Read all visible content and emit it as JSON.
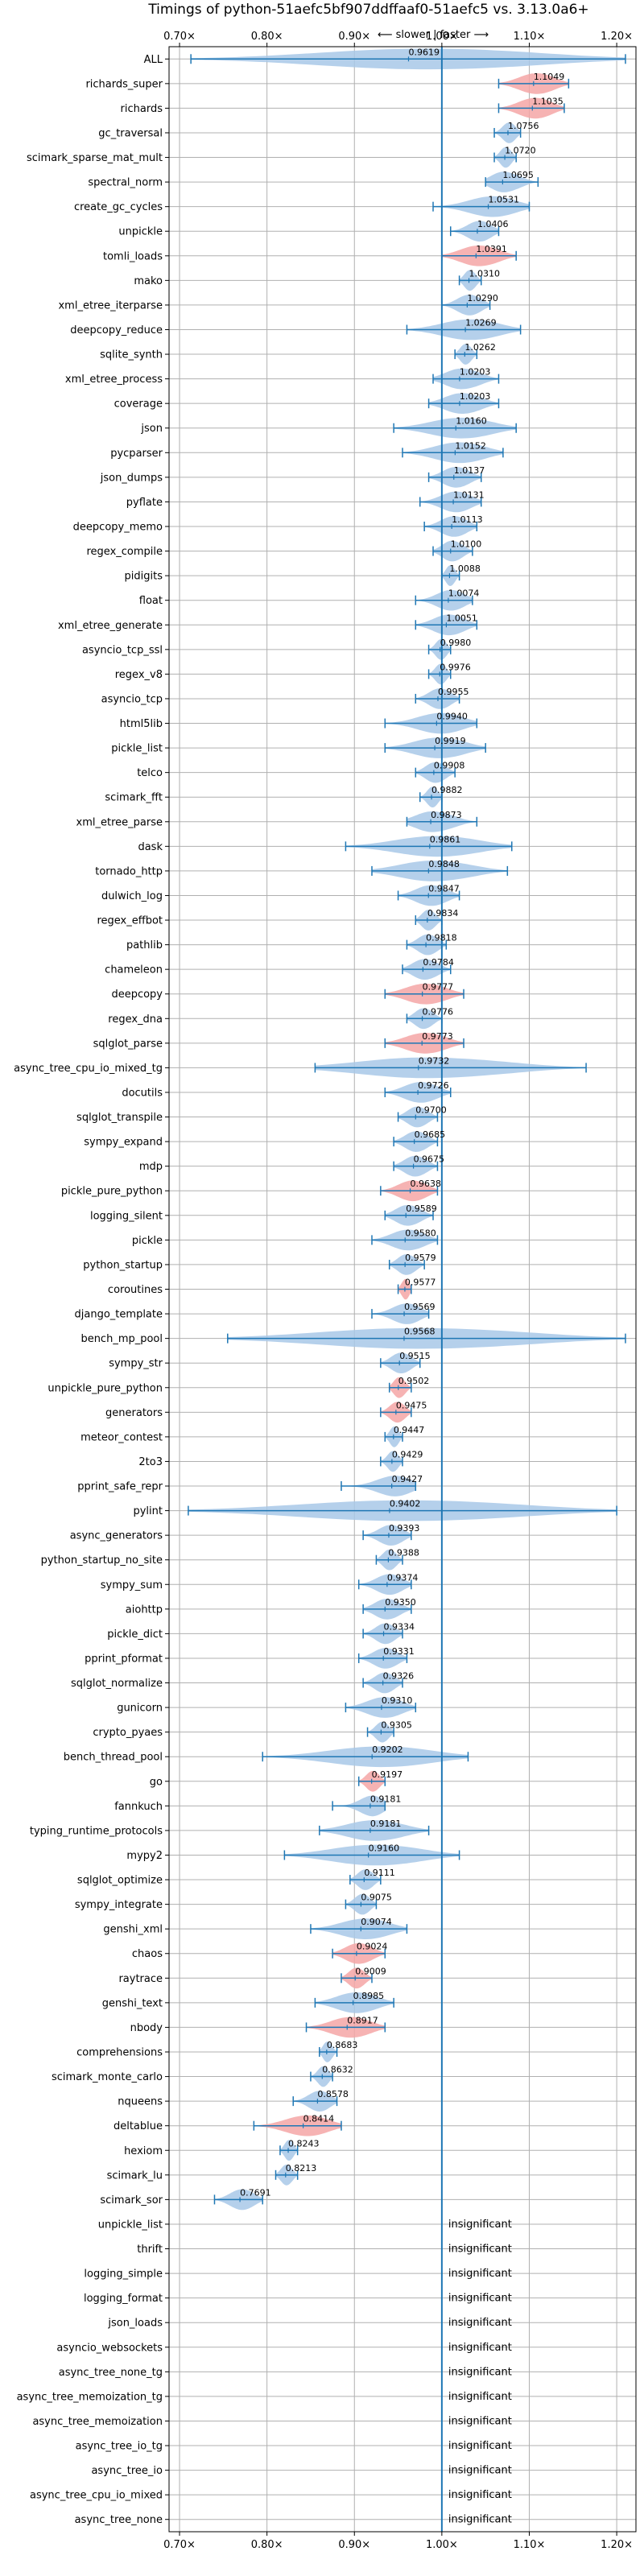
{
  "chart_data": {
    "type": "violin",
    "title": "Timings of python-51aefc5bf907ddffaaf0-51aefc5 vs. 3.13.0a6+",
    "direction_label": "⟵ slower | faster ⟶",
    "x_ticks": [
      "0.70×",
      "0.80×",
      "0.90×",
      "1.00×",
      "1.10×",
      "1.20×"
    ],
    "x_tick_values": [
      0.7,
      0.8,
      0.9,
      1.0,
      1.1,
      1.2
    ],
    "xlim": [
      0.688,
      1.222
    ],
    "reference_line": 1.0,
    "grid": true,
    "colors": {
      "faster": "#a8c8e8",
      "slower": "#f4a6a6",
      "marker": "#1f77b4",
      "grid": "#b0b0b0"
    },
    "insignificant_label": "insignificant",
    "benchmarks": [
      {
        "name": "ALL",
        "value": 0.9619,
        "label": "0.9619",
        "min": 0.713,
        "max": 1.21,
        "spread": 0.08,
        "slower": false
      },
      {
        "name": "richards_super",
        "value": 1.1049,
        "label": "1.1049",
        "min": 1.065,
        "max": 1.145,
        "spread": 0.04,
        "slower": true
      },
      {
        "name": "richards",
        "value": 1.1035,
        "label": "1.1035",
        "min": 1.065,
        "max": 1.14,
        "spread": 0.04,
        "slower": true
      },
      {
        "name": "gc_traversal",
        "value": 1.0756,
        "label": "1.0756",
        "min": 1.06,
        "max": 1.09,
        "spread": 0.02,
        "slower": false
      },
      {
        "name": "scimark_sparse_mat_mult",
        "value": 1.072,
        "label": "1.0720",
        "min": 1.06,
        "max": 1.085,
        "spread": 0.015,
        "slower": false
      },
      {
        "name": "spectral_norm",
        "value": 1.0695,
        "label": "1.0695",
        "min": 1.05,
        "max": 1.11,
        "spread": 0.05,
        "slower": false
      },
      {
        "name": "create_gc_cycles",
        "value": 1.0531,
        "label": "1.0531",
        "min": 0.99,
        "max": 1.1,
        "spread": 0.05,
        "slower": false
      },
      {
        "name": "unpickle",
        "value": 1.0406,
        "label": "1.0406",
        "min": 1.01,
        "max": 1.065,
        "spread": 0.03,
        "slower": false
      },
      {
        "name": "tomli_loads",
        "value": 1.0391,
        "label": "1.0391",
        "min": 1.0,
        "max": 1.085,
        "spread": 0.04,
        "slower": true
      },
      {
        "name": "mako",
        "value": 1.031,
        "label": "1.0310",
        "min": 1.02,
        "max": 1.045,
        "spread": 0.015,
        "slower": false
      },
      {
        "name": "xml_etree_iterparse",
        "value": 1.029,
        "label": "1.0290",
        "min": 1.0,
        "max": 1.055,
        "spread": 0.03,
        "slower": false
      },
      {
        "name": "deepcopy_reduce",
        "value": 1.0269,
        "label": "1.0269",
        "min": 0.96,
        "max": 1.09,
        "spread": 0.05,
        "slower": false
      },
      {
        "name": "sqlite_synth",
        "value": 1.0262,
        "label": "1.0262",
        "min": 1.015,
        "max": 1.04,
        "spread": 0.015,
        "slower": false
      },
      {
        "name": "xml_etree_process",
        "value": 1.0203,
        "label": "1.0203",
        "min": 0.99,
        "max": 1.065,
        "spread": 0.04,
        "slower": false
      },
      {
        "name": "coverage",
        "value": 1.0203,
        "label": "1.0203",
        "min": 0.985,
        "max": 1.065,
        "spread": 0.04,
        "slower": false
      },
      {
        "name": "json",
        "value": 1.016,
        "label": "1.0160",
        "min": 0.945,
        "max": 1.085,
        "spread": 0.05,
        "slower": false
      },
      {
        "name": "pycparser",
        "value": 1.0152,
        "label": "1.0152",
        "min": 0.955,
        "max": 1.07,
        "spread": 0.05,
        "slower": false
      },
      {
        "name": "json_dumps",
        "value": 1.0137,
        "label": "1.0137",
        "min": 0.985,
        "max": 1.045,
        "spread": 0.03,
        "slower": false
      },
      {
        "name": "pyflate",
        "value": 1.0131,
        "label": "1.0131",
        "min": 0.975,
        "max": 1.045,
        "spread": 0.03,
        "slower": false
      },
      {
        "name": "deepcopy_memo",
        "value": 1.0113,
        "label": "1.0113",
        "min": 0.98,
        "max": 1.04,
        "spread": 0.03,
        "slower": false
      },
      {
        "name": "regex_compile",
        "value": 1.01,
        "label": "1.0100",
        "min": 0.99,
        "max": 1.035,
        "spread": 0.02,
        "slower": false
      },
      {
        "name": "pidigits",
        "value": 1.0088,
        "label": "1.0088",
        "min": 1.0,
        "max": 1.02,
        "spread": 0.01,
        "slower": false
      },
      {
        "name": "float",
        "value": 1.0074,
        "label": "1.0074",
        "min": 0.97,
        "max": 1.035,
        "spread": 0.03,
        "slower": false
      },
      {
        "name": "xml_etree_generate",
        "value": 1.0051,
        "label": "1.0051",
        "min": 0.97,
        "max": 1.04,
        "spread": 0.03,
        "slower": false
      },
      {
        "name": "asyncio_tcp_ssl",
        "value": 0.998,
        "label": "0.9980",
        "min": 0.985,
        "max": 1.01,
        "spread": 0.015,
        "slower": false
      },
      {
        "name": "regex_v8",
        "value": 0.9976,
        "label": "0.9976",
        "min": 0.985,
        "max": 1.01,
        "spread": 0.015,
        "slower": false
      },
      {
        "name": "asyncio_tcp",
        "value": 0.9955,
        "label": "0.9955",
        "min": 0.97,
        "max": 1.02,
        "spread": 0.03,
        "slower": false
      },
      {
        "name": "html5lib",
        "value": 0.994,
        "label": "0.9940",
        "min": 0.935,
        "max": 1.04,
        "spread": 0.04,
        "slower": false
      },
      {
        "name": "pickle_list",
        "value": 0.9919,
        "label": "0.9919",
        "min": 0.935,
        "max": 1.05,
        "spread": 0.04,
        "slower": false
      },
      {
        "name": "telco",
        "value": 0.9908,
        "label": "0.9908",
        "min": 0.97,
        "max": 1.015,
        "spread": 0.02,
        "slower": false
      },
      {
        "name": "scimark_fft",
        "value": 0.9882,
        "label": "0.9882",
        "min": 0.975,
        "max": 1.0,
        "spread": 0.012,
        "slower": false
      },
      {
        "name": "xml_etree_parse",
        "value": 0.9873,
        "label": "0.9873",
        "min": 0.96,
        "max": 1.04,
        "spread": 0.03,
        "slower": false
      },
      {
        "name": "dask",
        "value": 0.9861,
        "label": "0.9861",
        "min": 0.89,
        "max": 1.08,
        "spread": 0.05,
        "slower": false
      },
      {
        "name": "tornado_http",
        "value": 0.9848,
        "label": "0.9848",
        "min": 0.92,
        "max": 1.075,
        "spread": 0.05,
        "slower": false
      },
      {
        "name": "dulwich_log",
        "value": 0.9847,
        "label": "0.9847",
        "min": 0.95,
        "max": 1.02,
        "spread": 0.03,
        "slower": false
      },
      {
        "name": "regex_effbot",
        "value": 0.9834,
        "label": "0.9834",
        "min": 0.97,
        "max": 1.0,
        "spread": 0.015,
        "slower": false
      },
      {
        "name": "pathlib",
        "value": 0.9818,
        "label": "0.9818",
        "min": 0.96,
        "max": 1.005,
        "spread": 0.02,
        "slower": false
      },
      {
        "name": "chameleon",
        "value": 0.9784,
        "label": "0.9784",
        "min": 0.955,
        "max": 1.01,
        "spread": 0.025,
        "slower": false
      },
      {
        "name": "deepcopy",
        "value": 0.9777,
        "label": "0.9777",
        "min": 0.935,
        "max": 1.025,
        "spread": 0.03,
        "slower": true
      },
      {
        "name": "regex_dna",
        "value": 0.9776,
        "label": "0.9776",
        "min": 0.96,
        "max": 1.0,
        "spread": 0.02,
        "slower": false
      },
      {
        "name": "sqlglot_parse",
        "value": 0.9773,
        "label": "0.9773",
        "min": 0.935,
        "max": 1.025,
        "spread": 0.03,
        "slower": true
      },
      {
        "name": "async_tree_cpu_io_mixed_tg",
        "value": 0.9732,
        "label": "0.9732",
        "min": 0.855,
        "max": 1.165,
        "spread": 0.065,
        "slower": false
      },
      {
        "name": "docutils",
        "value": 0.9726,
        "label": "0.9726",
        "min": 0.935,
        "max": 1.01,
        "spread": 0.03,
        "slower": false
      },
      {
        "name": "sqlglot_transpile",
        "value": 0.97,
        "label": "0.9700",
        "min": 0.95,
        "max": 0.995,
        "spread": 0.02,
        "slower": false
      },
      {
        "name": "sympy_expand",
        "value": 0.9685,
        "label": "0.9685",
        "min": 0.945,
        "max": 0.995,
        "spread": 0.02,
        "slower": false
      },
      {
        "name": "mdp",
        "value": 0.9675,
        "label": "0.9675",
        "min": 0.945,
        "max": 0.995,
        "spread": 0.02,
        "slower": false
      },
      {
        "name": "pickle_pure_python",
        "value": 0.9638,
        "label": "0.9638",
        "min": 0.93,
        "max": 0.995,
        "spread": 0.03,
        "slower": true
      },
      {
        "name": "logging_silent",
        "value": 0.9589,
        "label": "0.9589",
        "min": 0.935,
        "max": 0.99,
        "spread": 0.02,
        "slower": false
      },
      {
        "name": "pickle",
        "value": 0.958,
        "label": "0.9580",
        "min": 0.92,
        "max": 0.995,
        "spread": 0.025,
        "slower": false
      },
      {
        "name": "python_startup",
        "value": 0.9579,
        "label": "0.9579",
        "min": 0.94,
        "max": 0.98,
        "spread": 0.015,
        "slower": false
      },
      {
        "name": "coroutines",
        "value": 0.9577,
        "label": "0.9577",
        "min": 0.95,
        "max": 0.965,
        "spread": 0.01,
        "slower": true
      },
      {
        "name": "django_template",
        "value": 0.9569,
        "label": "0.9569",
        "min": 0.92,
        "max": 0.985,
        "spread": 0.025,
        "slower": false
      },
      {
        "name": "bench_mp_pool",
        "value": 0.9568,
        "label": "0.9568",
        "min": 0.755,
        "max": 1.21,
        "spread": 0.08,
        "slower": false
      },
      {
        "name": "sympy_str",
        "value": 0.9515,
        "label": "0.9515",
        "min": 0.93,
        "max": 0.975,
        "spread": 0.02,
        "slower": false
      },
      {
        "name": "unpickle_pure_python",
        "value": 0.9502,
        "label": "0.9502",
        "min": 0.94,
        "max": 0.965,
        "spread": 0.015,
        "slower": true
      },
      {
        "name": "generators",
        "value": 0.9475,
        "label": "0.9475",
        "min": 0.93,
        "max": 0.965,
        "spread": 0.015,
        "slower": true
      },
      {
        "name": "meteor_contest",
        "value": 0.9447,
        "label": "0.9447",
        "min": 0.935,
        "max": 0.955,
        "spread": 0.012,
        "slower": false
      },
      {
        "name": "2to3",
        "value": 0.9429,
        "label": "0.9429",
        "min": 0.93,
        "max": 0.955,
        "spread": 0.012,
        "slower": false
      },
      {
        "name": "pprint_safe_repr",
        "value": 0.9427,
        "label": "0.9427",
        "min": 0.885,
        "max": 0.97,
        "spread": 0.025,
        "slower": false
      },
      {
        "name": "pylint",
        "value": 0.9402,
        "label": "0.9402",
        "min": 0.71,
        "max": 1.2,
        "spread": 0.08,
        "slower": false
      },
      {
        "name": "async_generators",
        "value": 0.9393,
        "label": "0.9393",
        "min": 0.91,
        "max": 0.965,
        "spread": 0.02,
        "slower": false
      },
      {
        "name": "python_startup_no_site",
        "value": 0.9388,
        "label": "0.9388",
        "min": 0.925,
        "max": 0.955,
        "spread": 0.012,
        "slower": false
      },
      {
        "name": "sympy_sum",
        "value": 0.9374,
        "label": "0.9374",
        "min": 0.905,
        "max": 0.965,
        "spread": 0.025,
        "slower": false
      },
      {
        "name": "aiohttp",
        "value": 0.935,
        "label": "0.9350",
        "min": 0.91,
        "max": 0.965,
        "spread": 0.02,
        "slower": false
      },
      {
        "name": "pickle_dict",
        "value": 0.9334,
        "label": "0.9334",
        "min": 0.91,
        "max": 0.955,
        "spread": 0.02,
        "slower": false
      },
      {
        "name": "pprint_pformat",
        "value": 0.9331,
        "label": "0.9331",
        "min": 0.905,
        "max": 0.96,
        "spread": 0.02,
        "slower": false
      },
      {
        "name": "sqlglot_normalize",
        "value": 0.9326,
        "label": "0.9326",
        "min": 0.91,
        "max": 0.955,
        "spread": 0.02,
        "slower": false
      },
      {
        "name": "gunicorn",
        "value": 0.931,
        "label": "0.9310",
        "min": 0.89,
        "max": 0.97,
        "spread": 0.03,
        "slower": false
      },
      {
        "name": "crypto_pyaes",
        "value": 0.9305,
        "label": "0.9305",
        "min": 0.915,
        "max": 0.945,
        "spread": 0.012,
        "slower": false
      },
      {
        "name": "bench_thread_pool",
        "value": 0.9202,
        "label": "0.9202",
        "min": 0.795,
        "max": 1.03,
        "spread": 0.06,
        "slower": false
      },
      {
        "name": "go",
        "value": 0.9197,
        "label": "0.9197",
        "min": 0.905,
        "max": 0.935,
        "spread": 0.015,
        "slower": true
      },
      {
        "name": "fannkuch",
        "value": 0.9181,
        "label": "0.9181",
        "min": 0.875,
        "max": 0.935,
        "spread": 0.02,
        "slower": false
      },
      {
        "name": "typing_runtime_protocols",
        "value": 0.9181,
        "label": "0.9181",
        "min": 0.86,
        "max": 0.985,
        "spread": 0.03,
        "slower": false
      },
      {
        "name": "mypy2",
        "value": 0.916,
        "label": "0.9160",
        "min": 0.82,
        "max": 1.02,
        "spread": 0.05,
        "slower": false
      },
      {
        "name": "sqlglot_optimize",
        "value": 0.9111,
        "label": "0.9111",
        "min": 0.895,
        "max": 0.93,
        "spread": 0.015,
        "slower": false
      },
      {
        "name": "sympy_integrate",
        "value": 0.9075,
        "label": "0.9075",
        "min": 0.89,
        "max": 0.925,
        "spread": 0.015,
        "slower": false
      },
      {
        "name": "genshi_xml",
        "value": 0.9074,
        "label": "0.9074",
        "min": 0.85,
        "max": 0.96,
        "spread": 0.03,
        "slower": false
      },
      {
        "name": "chaos",
        "value": 0.9024,
        "label": "0.9024",
        "min": 0.875,
        "max": 0.935,
        "spread": 0.025,
        "slower": true
      },
      {
        "name": "raytrace",
        "value": 0.9009,
        "label": "0.9009",
        "min": 0.885,
        "max": 0.92,
        "spread": 0.015,
        "slower": true
      },
      {
        "name": "genshi_text",
        "value": 0.8985,
        "label": "0.8985",
        "min": 0.855,
        "max": 0.945,
        "spread": 0.03,
        "slower": false
      },
      {
        "name": "nbody",
        "value": 0.8917,
        "label": "0.8917",
        "min": 0.845,
        "max": 0.935,
        "spread": 0.035,
        "slower": true
      },
      {
        "name": "comprehensions",
        "value": 0.8683,
        "label": "0.8683",
        "min": 0.86,
        "max": 0.88,
        "spread": 0.01,
        "slower": false
      },
      {
        "name": "scimark_monte_carlo",
        "value": 0.8632,
        "label": "0.8632",
        "min": 0.85,
        "max": 0.875,
        "spread": 0.012,
        "slower": false
      },
      {
        "name": "nqueens",
        "value": 0.8578,
        "label": "0.8578",
        "min": 0.83,
        "max": 0.88,
        "spread": 0.02,
        "slower": false
      },
      {
        "name": "deltablue",
        "value": 0.8414,
        "label": "0.8414",
        "min": 0.785,
        "max": 0.885,
        "spread": 0.045,
        "slower": true
      },
      {
        "name": "hexiom",
        "value": 0.8243,
        "label": "0.8243",
        "min": 0.815,
        "max": 0.835,
        "spread": 0.01,
        "slower": false
      },
      {
        "name": "scimark_lu",
        "value": 0.8213,
        "label": "0.8213",
        "min": 0.81,
        "max": 0.835,
        "spread": 0.01,
        "slower": false
      },
      {
        "name": "scimark_sor",
        "value": 0.7691,
        "label": "0.7691",
        "min": 0.74,
        "max": 0.795,
        "spread": 0.02,
        "slower": false
      },
      {
        "name": "unpickle_list",
        "insignificant": true
      },
      {
        "name": "thrift",
        "insignificant": true
      },
      {
        "name": "logging_simple",
        "insignificant": true
      },
      {
        "name": "logging_format",
        "insignificant": true
      },
      {
        "name": "json_loads",
        "insignificant": true
      },
      {
        "name": "asyncio_websockets",
        "insignificant": true
      },
      {
        "name": "async_tree_none_tg",
        "insignificant": true
      },
      {
        "name": "async_tree_memoization_tg",
        "insignificant": true
      },
      {
        "name": "async_tree_memoization",
        "insignificant": true
      },
      {
        "name": "async_tree_io_tg",
        "insignificant": true
      },
      {
        "name": "async_tree_io",
        "insignificant": true
      },
      {
        "name": "async_tree_cpu_io_mixed",
        "insignificant": true
      },
      {
        "name": "async_tree_none",
        "insignificant": true
      }
    ]
  }
}
